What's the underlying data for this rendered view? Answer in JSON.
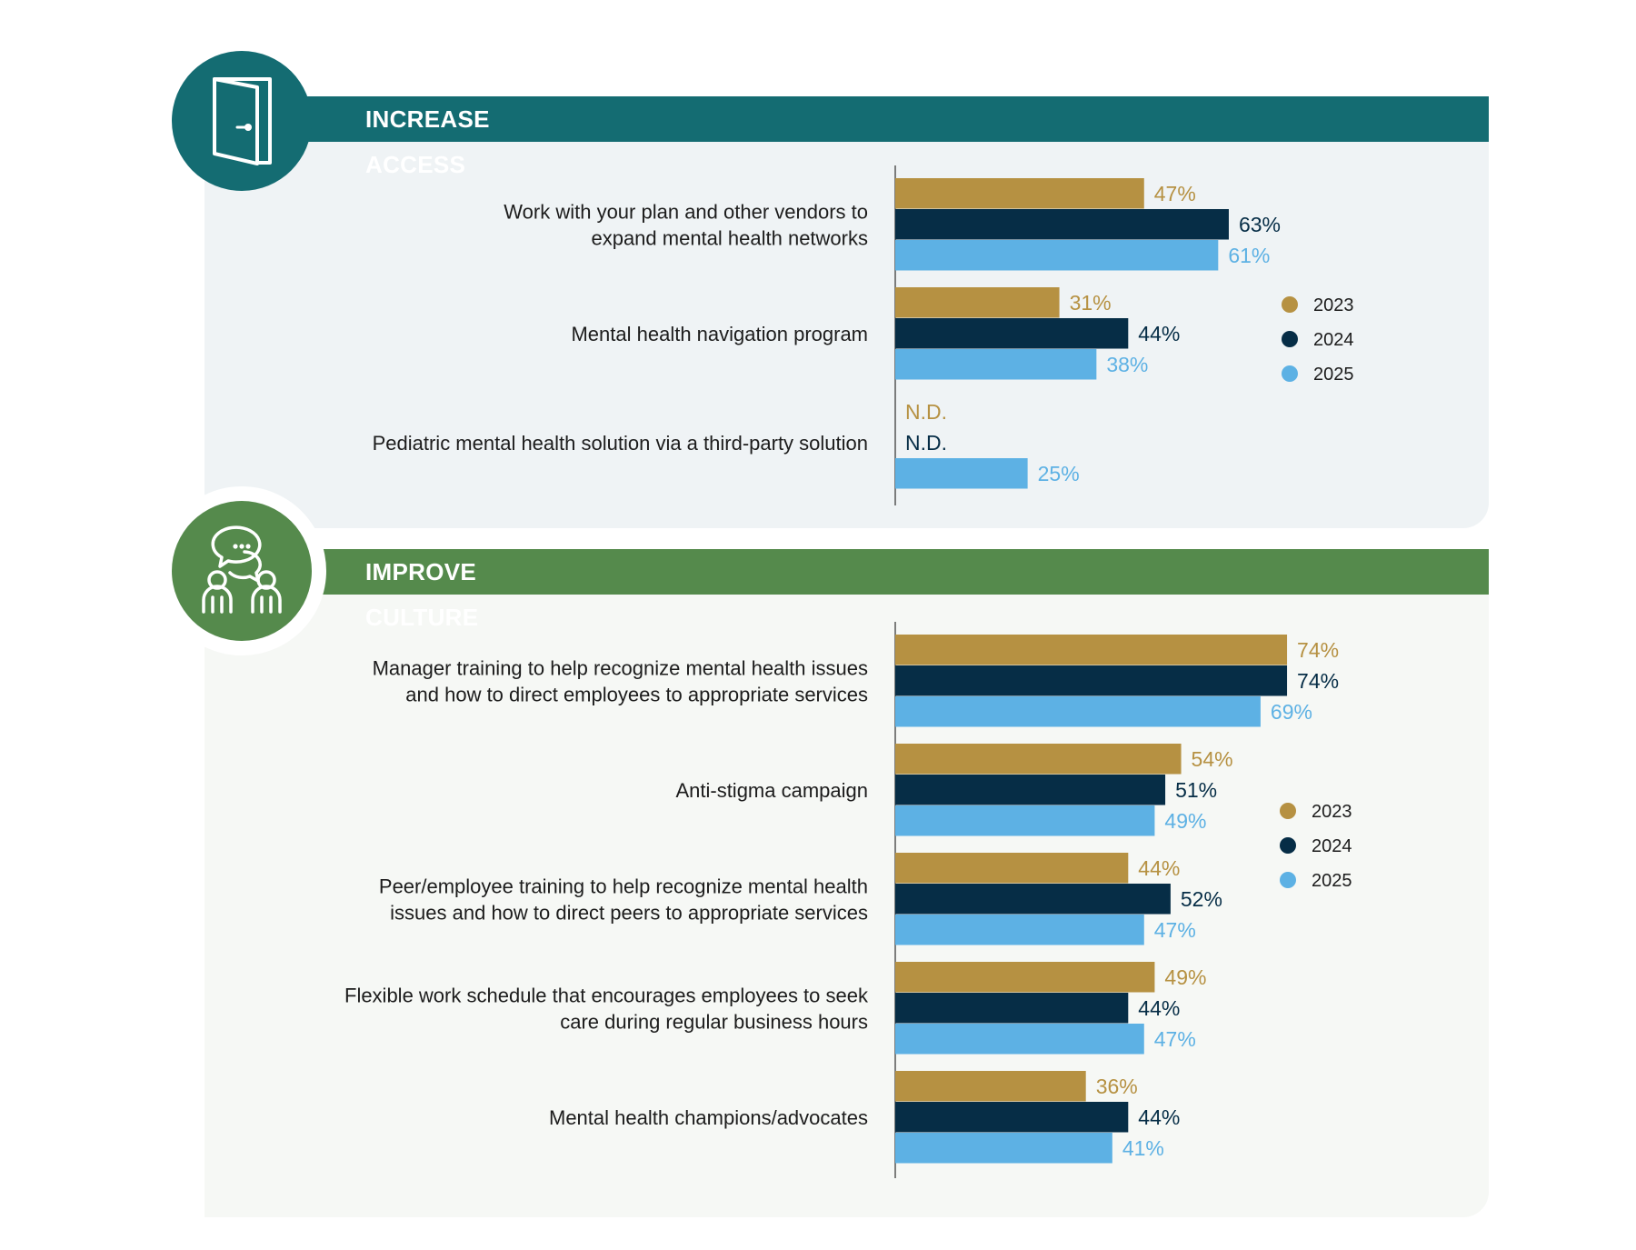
{
  "colors": {
    "y2023": "#b69142",
    "y2024": "#062d46",
    "y2025": "#5db1e4",
    "access": "#146c72",
    "culture": "#558a4c",
    "access_bg": "#eff3f5",
    "culture_bg": "#f6f8f5"
  },
  "icons": {
    "access": "door-icon",
    "culture": "conversation-people-icon"
  },
  "chart_data": [
    {
      "type": "bar",
      "orientation": "horizontal",
      "title": "INCREASE ACCESS",
      "categories": [
        [
          "Work with your plan and other vendors to",
          "expand mental health networks"
        ],
        [
          "Mental health navigation program"
        ],
        [
          "Pediatric mental health solution via a third-party solution"
        ]
      ],
      "series": [
        {
          "name": "2023",
          "values": [
            47,
            31,
            null
          ],
          "labels": [
            "47%",
            "31%",
            "N.D."
          ]
        },
        {
          "name": "2024",
          "values": [
            63,
            44,
            null
          ],
          "labels": [
            "63%",
            "44%",
            "N.D."
          ]
        },
        {
          "name": "2025",
          "values": [
            61,
            38,
            25
          ],
          "labels": [
            "61%",
            "38%",
            "25%"
          ]
        }
      ],
      "xlim": [
        0,
        100
      ],
      "legend": [
        "2023",
        "2024",
        "2025"
      ],
      "legend_position": "right"
    },
    {
      "type": "bar",
      "orientation": "horizontal",
      "title": "IMPROVE CULTURE",
      "categories": [
        [
          "Manager training to help recognize mental health issues",
          "and how to direct employees to appropriate services"
        ],
        [
          "Anti-stigma campaign"
        ],
        [
          "Peer/employee training to help recognize mental health",
          "issues and how to direct peers to appropriate services"
        ],
        [
          "Flexible work schedule that encourages employees to seek",
          "care during regular business hours"
        ],
        [
          "Mental health champions/advocates"
        ]
      ],
      "series": [
        {
          "name": "2023",
          "values": [
            74,
            54,
            44,
            49,
            36
          ],
          "labels": [
            "74%",
            "54%",
            "44%",
            "49%",
            "36%"
          ]
        },
        {
          "name": "2024",
          "values": [
            74,
            51,
            52,
            44,
            44
          ],
          "labels": [
            "74%",
            "51%",
            "52%",
            "44%",
            "44%"
          ]
        },
        {
          "name": "2025",
          "values": [
            69,
            49,
            47,
            47,
            41
          ],
          "labels": [
            "69%",
            "49%",
            "47%",
            "47%",
            "41%"
          ]
        }
      ],
      "xlim": [
        0,
        100
      ],
      "legend": [
        "2023",
        "2024",
        "2025"
      ],
      "legend_position": "right"
    }
  ]
}
